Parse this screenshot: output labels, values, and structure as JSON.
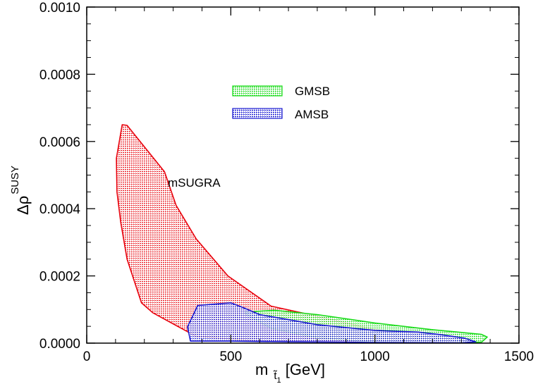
{
  "chart_data": {
    "type": "area",
    "xlabel_main": "m",
    "xlabel_sub": "t̃",
    "xlabel_subsub": "1",
    "xlabel_unit": " [GeV]",
    "ylabel_main": "Δρ",
    "ylabel_sup": "SUSY",
    "xlim": [
      0,
      1500
    ],
    "ylim": [
      0,
      0.001
    ],
    "x_ticks": [
      {
        "value": 0,
        "label": "0"
      },
      {
        "value": 500,
        "label": "500"
      },
      {
        "value": 1000,
        "label": "1000"
      },
      {
        "value": 1500,
        "label": "1500"
      }
    ],
    "y_ticks": [
      {
        "value": 0,
        "label": "0.0000"
      },
      {
        "value": 0.0002,
        "label": "0.0002"
      },
      {
        "value": 0.0004,
        "label": "0.0004"
      },
      {
        "value": 0.0006,
        "label": "0.0006"
      },
      {
        "value": 0.0008,
        "label": "0.0008"
      },
      {
        "value": 0.001,
        "label": "0.0010"
      }
    ],
    "series": [
      {
        "name": "mSUGRA",
        "stroke": "#e8000b",
        "fill": "#f29a9a",
        "points": [
          [
            103,
            0.00055
          ],
          [
            123,
            0.00065
          ],
          [
            140,
            0.000648
          ],
          [
            270,
            0.00051
          ],
          [
            310,
            0.00041
          ],
          [
            380,
            0.00031
          ],
          [
            490,
            0.0002
          ],
          [
            640,
            0.00011
          ],
          [
            800,
            8e-05
          ],
          [
            1000,
            4e-05
          ],
          [
            1180,
            2.5e-05
          ],
          [
            1270,
            8e-06
          ],
          [
            1250,
            2e-06
          ],
          [
            600,
            6e-06
          ],
          [
            380,
            2e-05
          ],
          [
            230,
            9e-05
          ],
          [
            190,
            0.00012
          ],
          [
            140,
            0.00025
          ],
          [
            118,
            0.00036
          ],
          [
            105,
            0.00045
          ]
        ]
      },
      {
        "name": "GMSB",
        "stroke": "#1adb1a",
        "fill": "#7ee77e",
        "points": [
          [
            550,
            9.2e-05
          ],
          [
            650,
            9.8e-05
          ],
          [
            800,
            8.5e-05
          ],
          [
            1000,
            6e-05
          ],
          [
            1200,
            4e-05
          ],
          [
            1370,
            2.6e-05
          ],
          [
            1390,
            1.8e-05
          ],
          [
            1370,
            3e-06
          ],
          [
            1250,
            1e-06
          ],
          [
            1000,
            3e-06
          ],
          [
            800,
            1.6e-05
          ],
          [
            640,
            4.4e-05
          ],
          [
            550,
            8.8e-05
          ]
        ]
      },
      {
        "name": "AMSB",
        "stroke": "#1a1ad0",
        "fill": "#8d8ddb",
        "points": [
          [
            355,
            5.8e-05
          ],
          [
            385,
            0.000112
          ],
          [
            500,
            0.00012
          ],
          [
            545,
            0.000105
          ],
          [
            600,
            8.5e-05
          ],
          [
            800,
            5.5e-05
          ],
          [
            1000,
            3.8e-05
          ],
          [
            1150,
            3.3e-05
          ],
          [
            1230,
            2.5e-05
          ],
          [
            1310,
            1.5e-05
          ],
          [
            1350,
            4e-06
          ],
          [
            1300,
            1e-06
          ],
          [
            1000,
            2e-06
          ],
          [
            700,
            4e-06
          ],
          [
            500,
            6e-06
          ],
          [
            360,
            6e-06
          ],
          [
            350,
            4.8e-05
          ]
        ]
      }
    ],
    "legend": [
      {
        "name": "GMSB",
        "label": "GMSB"
      },
      {
        "name": "AMSB",
        "label": "AMSB"
      }
    ],
    "annotations": [
      {
        "text": "mSUGRA",
        "x": 290,
        "y": 0.00048
      }
    ],
    "legend_position": "upper-center"
  }
}
